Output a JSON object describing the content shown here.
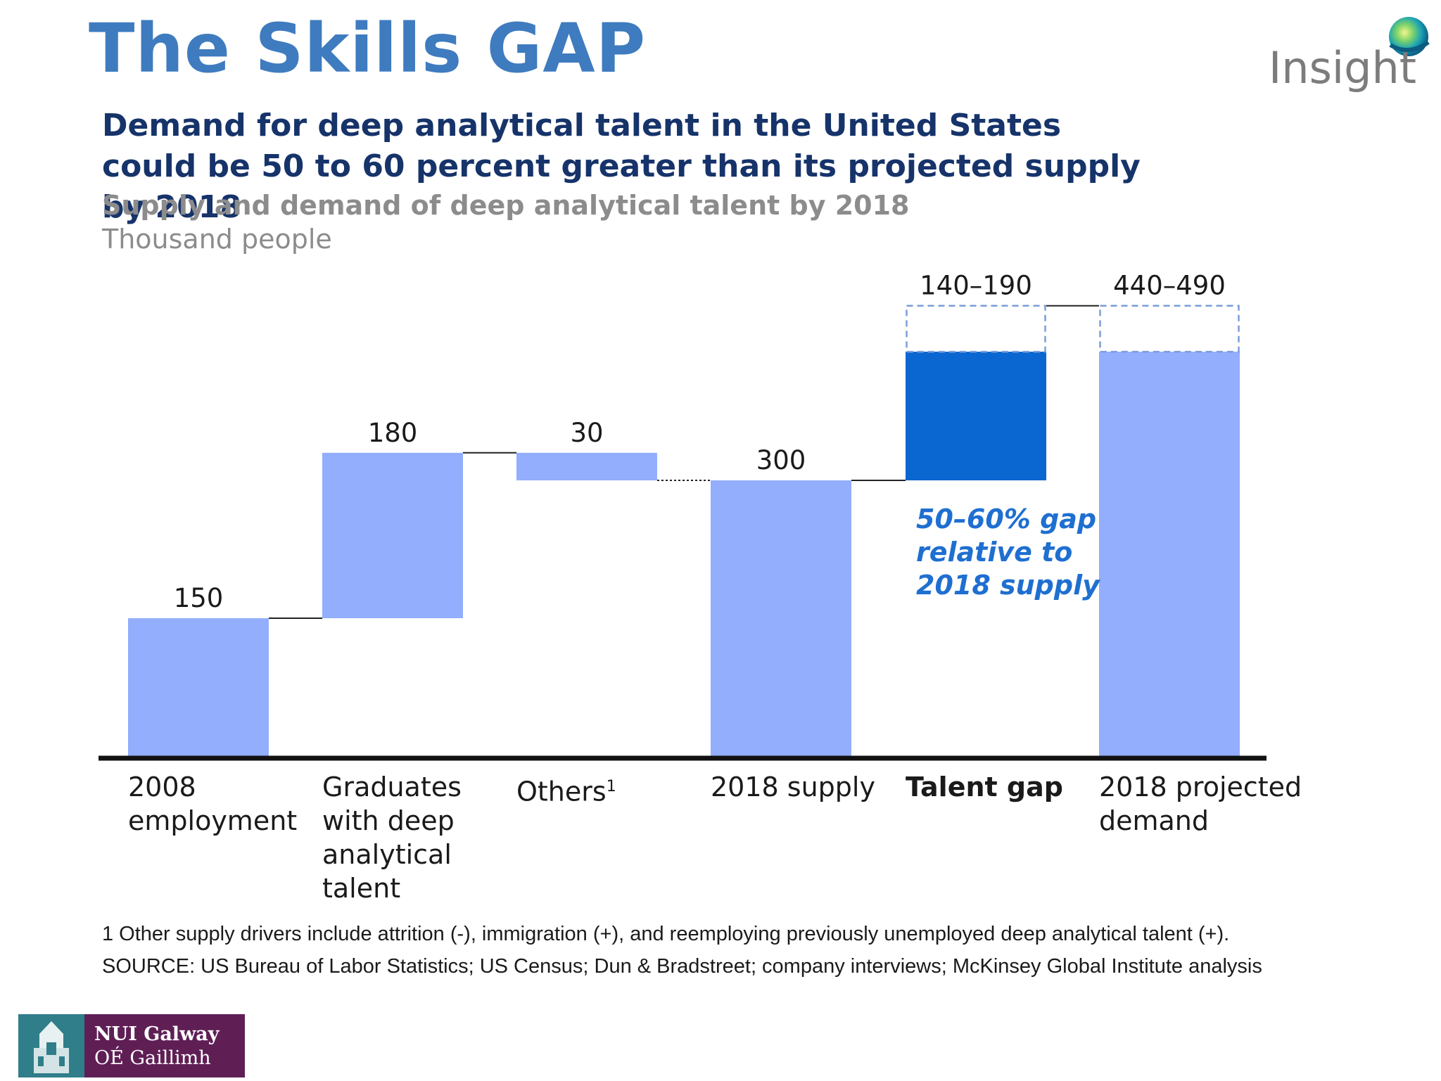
{
  "slide": {
    "title": "The Skills GAP",
    "logo_text": "Insight"
  },
  "chart_data": {
    "type": "bar",
    "variant": "waterfall",
    "title": "Demand for deep analytical talent in the United States could be 50 to 60 percent greater than its projected supply by 2018",
    "subtitle": "Supply and demand of deep analytical talent by 2018",
    "units": "Thousand people",
    "categories": [
      "2008 employment",
      "Graduates with deep analytical talent",
      "Others",
      "2018 supply",
      "Talent gap",
      "2018 projected demand"
    ],
    "footnote_marks": [
      "",
      "",
      "1",
      "",
      "",
      ""
    ],
    "bars": [
      {
        "category": "2008 employment",
        "base": 0,
        "top": 150,
        "label": "150",
        "kind": "total"
      },
      {
        "category": "Graduates with deep analytical talent",
        "base": 150,
        "top": 330,
        "label": "180",
        "kind": "increment"
      },
      {
        "category": "Others",
        "base": 300,
        "top": 330,
        "label": "30",
        "kind": "decrement"
      },
      {
        "category": "2018 supply",
        "base": 0,
        "top": 300,
        "label": "300",
        "kind": "total"
      },
      {
        "category": "Talent gap",
        "base": 300,
        "top": 440,
        "range_top": 490,
        "label": "140–190",
        "kind": "gap"
      },
      {
        "category": "2018 projected demand",
        "base": 0,
        "top": 440,
        "range_top": 490,
        "label": "440–490",
        "kind": "total"
      }
    ],
    "annotation": "50–60% gap relative to 2018 supply",
    "colors": {
      "bar": "#93aefc",
      "gap": "#0a66d0",
      "dashed_outline": "#7a9ed9",
      "axis": "#111111"
    },
    "grid": false,
    "legend": "none"
  },
  "footnotes": {
    "note": "1  Other supply drivers include attrition (-), immigration (+), and reemploying previously unemployed deep analytical talent (+).",
    "source": "SOURCE: US Bureau of Labor Statistics; US Census; Dun & Bradstreet; company interviews; McKinsey Global Institute analysis"
  },
  "university_logo": {
    "name": "NUI Galway",
    "irish_name": "OÉ Gaillimh"
  }
}
